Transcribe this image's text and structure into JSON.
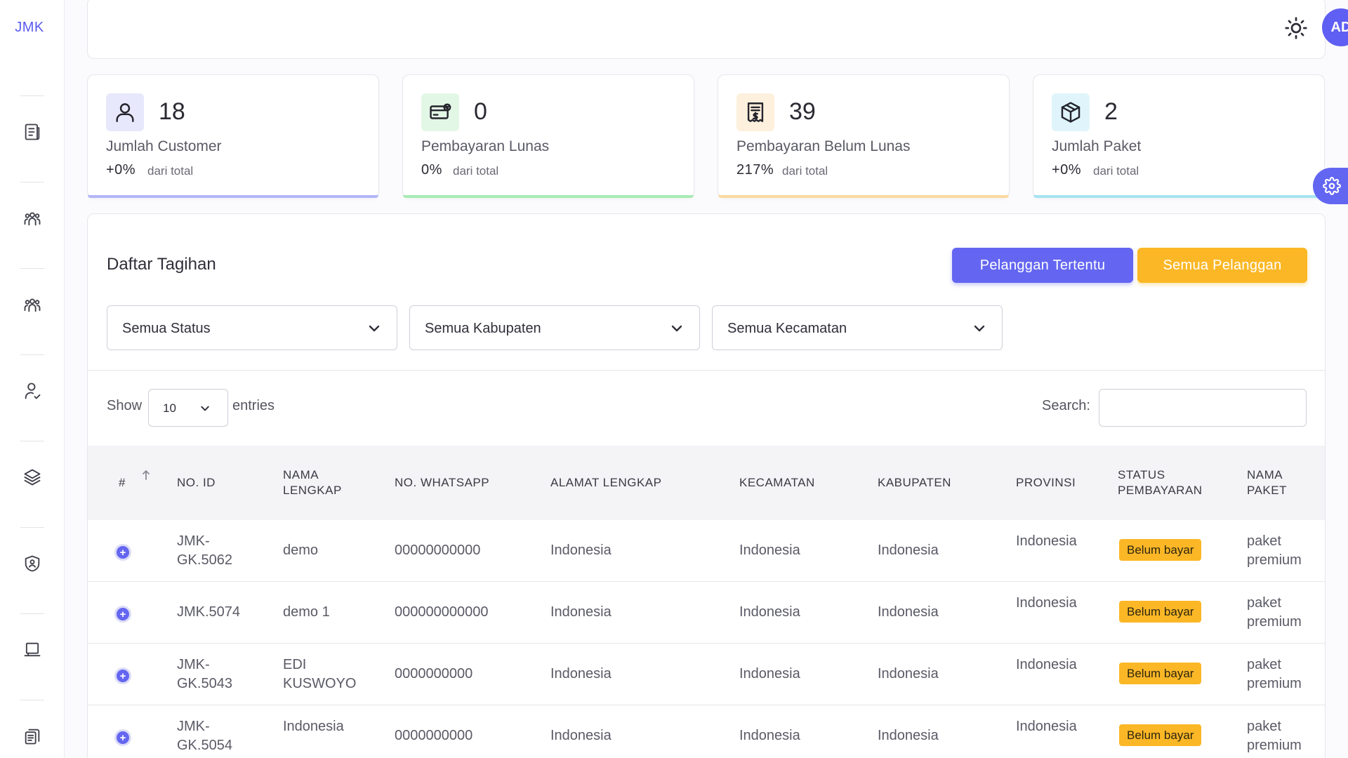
{
  "app": {
    "logo": "JMK"
  },
  "sidebar": {
    "icons": [
      "document-list-icon",
      "users-group-icon",
      "users-group-alt-icon",
      "user-check-icon",
      "layers-icon",
      "shield-user-icon",
      "laptop-icon",
      "documents-copy-icon"
    ]
  },
  "header": {
    "theme_icon": "sun-icon",
    "avatar_initials": "AD",
    "status_color": "#53d769"
  },
  "stats": [
    {
      "value": "18",
      "label": "Jumlah Customer",
      "pct": "+0%",
      "sub": "dari total",
      "icon": "user-icon",
      "icon_bg": "#e8e8fc",
      "accent": "#b3b5f7"
    },
    {
      "value": "0",
      "label": "Pembayaran Lunas",
      "pct": "0%",
      "sub": "dari total",
      "icon": "credit-card-icon",
      "icon_bg": "#e3f7e6",
      "accent": "#a8ebb4"
    },
    {
      "value": "39",
      "label": "Pembayaran Belum Lunas",
      "pct": "217%",
      "sub": "dari total",
      "icon": "receipt-icon",
      "icon_bg": "#fdf0dd",
      "accent": "#fcd9a0"
    },
    {
      "value": "2",
      "label": "Jumlah Paket",
      "pct": "+0%",
      "sub": "dari total",
      "icon": "package-icon",
      "icon_bg": "#dff5fb",
      "accent": "#a7e3f1"
    }
  ],
  "panel": {
    "title": "Daftar Tagihan",
    "btn_specific": "Pelanggan Tertentu",
    "btn_all": "Semua Pelanggan",
    "filters": [
      "Semua Status",
      "Semua Kabupaten",
      "Semua Kecamatan"
    ],
    "show_label": "Show",
    "page_length": "10",
    "entries_label": "entries",
    "search_label": "Search:",
    "search_value": ""
  },
  "table": {
    "headers": {
      "num": "#",
      "id": "NO. ID",
      "name": [
        "NAMA",
        "LENGKAP"
      ],
      "wa": "NO. WHATSAPP",
      "alamat": "ALAMAT LENGKAP",
      "kecamatan": "KECAMATAN",
      "kabupaten": "KABUPATEN",
      "provinsi": "PROVINSI",
      "status": [
        "STATUS",
        "PEMBAYARAN"
      ],
      "paket": [
        "NAMA",
        "PAKET"
      ]
    },
    "rows": [
      {
        "id": [
          "JMK-",
          "GK.5062"
        ],
        "name": [
          "demo"
        ],
        "wa": "00000000000",
        "alamat": "Indonesia",
        "kecamatan": "Indonesia",
        "kabupaten": "Indonesia",
        "provinsi": "Indonesia",
        "status": "Belum bayar",
        "paket": [
          "paket",
          "premium"
        ]
      },
      {
        "id": [
          "JMK.5074"
        ],
        "name": [
          "demo 1"
        ],
        "wa": "000000000000",
        "alamat": "Indonesia",
        "kecamatan": "Indonesia",
        "kabupaten": "Indonesia",
        "provinsi": "Indonesia",
        "status": "Belum bayar",
        "paket": [
          "paket",
          "premium"
        ]
      },
      {
        "id": [
          "JMK-",
          "GK.5043"
        ],
        "name": [
          "EDI",
          "KUSWOYO"
        ],
        "wa": "0000000000",
        "alamat": "Indonesia",
        "kecamatan": "Indonesia",
        "kabupaten": "Indonesia",
        "provinsi": "Indonesia",
        "status": "Belum bayar",
        "paket": [
          "paket",
          "premium"
        ]
      },
      {
        "id": [
          "JMK-",
          "GK.5054"
        ],
        "name": [
          "Indonesia"
        ],
        "wa": "0000000000",
        "alamat": "Indonesia",
        "kecamatan": "Indonesia",
        "kabupaten": "Indonesia",
        "provinsi": "Indonesia",
        "status": "Belum bayar",
        "paket": [
          "paket",
          "premium"
        ]
      }
    ]
  },
  "colors": {
    "primary": "#6466f1",
    "warning": "#fbb726"
  }
}
